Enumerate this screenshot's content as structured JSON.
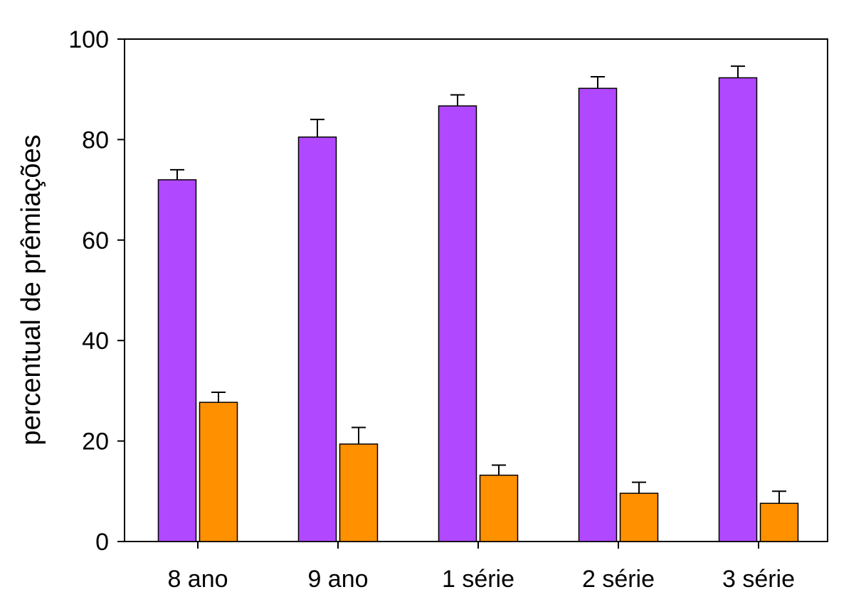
{
  "chart_data": {
    "type": "bar",
    "title": "",
    "xlabel": "",
    "ylabel": "percentual de prêmiações",
    "categories": [
      "8 ano",
      "9 ano",
      "1 série",
      "2 série",
      "3 série"
    ],
    "ylim": [
      0,
      100
    ],
    "yticks": [
      "0",
      "20",
      "40",
      "60",
      "80",
      "100"
    ],
    "grid": false,
    "series": [
      {
        "color": "#B048FF",
        "values": [
          72,
          80.5,
          86.7,
          90.2,
          92.3
        ],
        "errors": [
          2,
          3.5,
          2.2,
          2.3,
          2.3
        ]
      },
      {
        "color": "#FF9000",
        "values": [
          27.7,
          19.4,
          13.2,
          9.6,
          7.6
        ],
        "errors": [
          2,
          3.3,
          2,
          2.2,
          2.4
        ]
      }
    ]
  }
}
